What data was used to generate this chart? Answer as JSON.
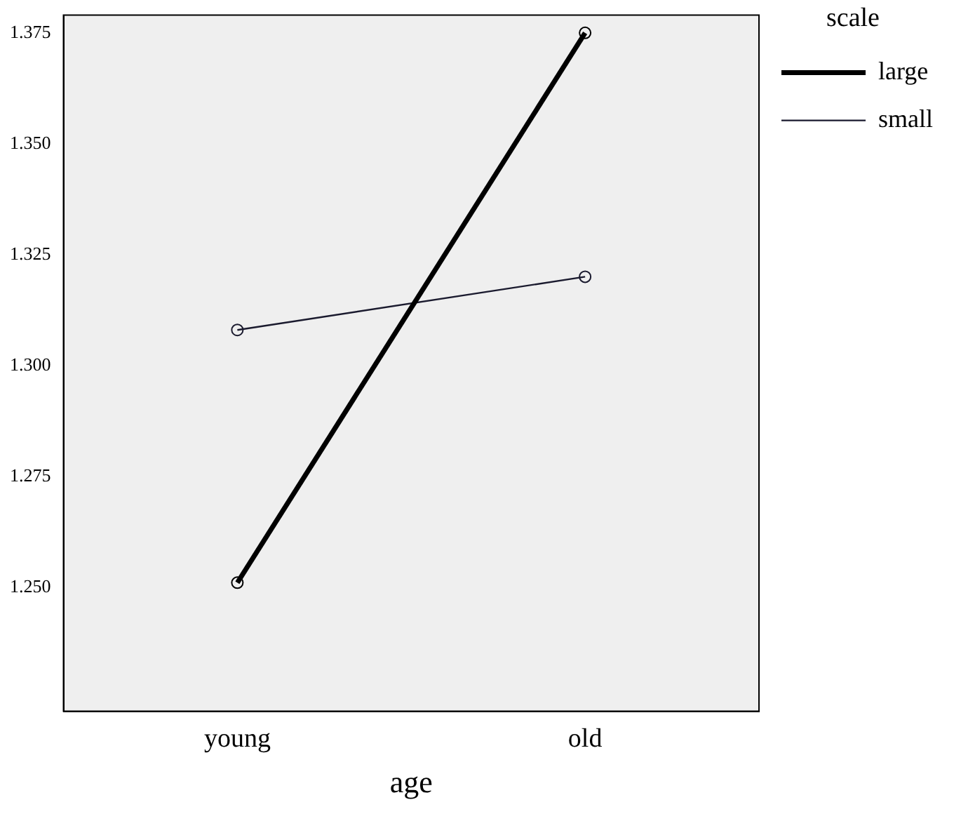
{
  "chart_data": {
    "type": "line",
    "xlabel": "age",
    "legend_title": "scale",
    "legend": "top right",
    "marker": "circle",
    "grid": false,
    "categories": [
      "young",
      "old"
    ],
    "series": [
      {
        "name": "large",
        "color": "#000000",
        "values": [
          1.251,
          1.375
        ]
      },
      {
        "name": "small",
        "color": "#1a1a2e",
        "values": [
          1.308,
          1.32
        ]
      }
    ],
    "ylim": [
      1.222,
      1.379
    ],
    "yticks": [
      {
        "value": 1.25,
        "label": "1.250"
      },
      {
        "value": 1.275,
        "label": "1.275"
      },
      {
        "value": 1.3,
        "label": "1.300"
      },
      {
        "value": 1.325,
        "label": "1.325"
      },
      {
        "value": 1.35,
        "label": "1.350"
      },
      {
        "value": 1.375,
        "label": "1.375"
      }
    ]
  }
}
